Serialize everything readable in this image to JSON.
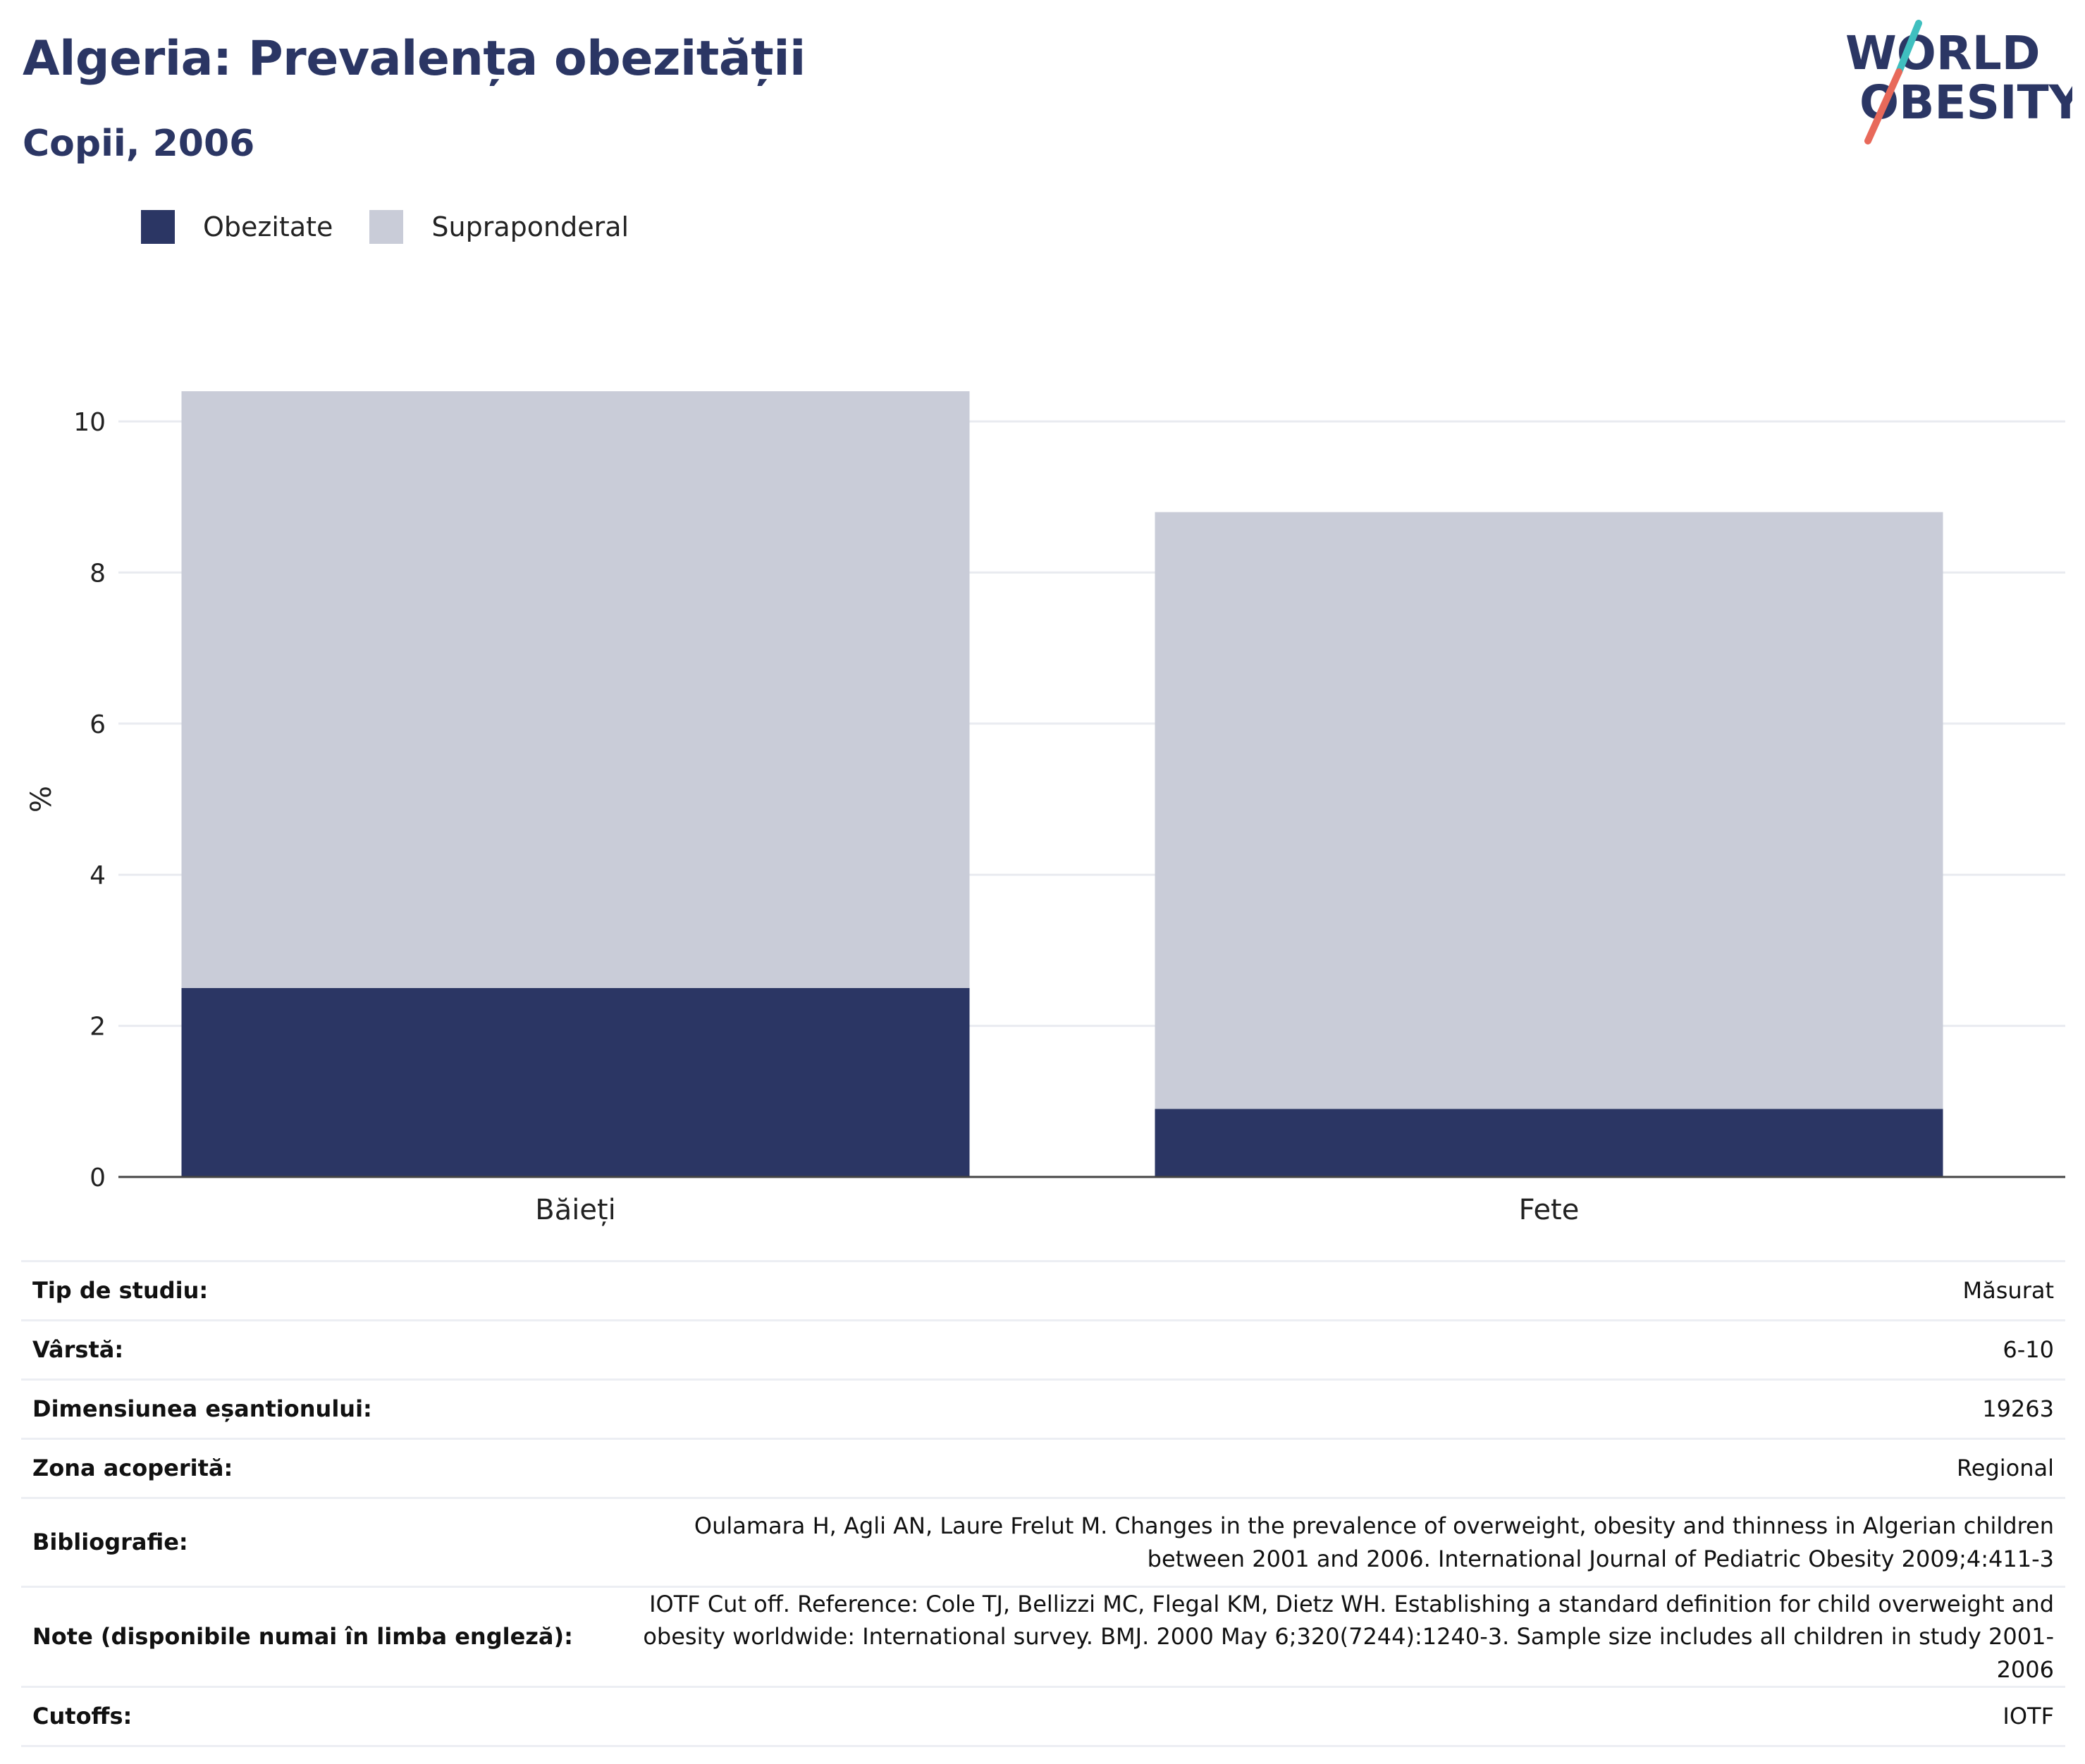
{
  "header": {
    "title": "Algeria: Prevalența obezității",
    "subtitle": "Copii, 2006"
  },
  "logo": {
    "line1": "WORLD",
    "line2": "OBESITY",
    "colors": {
      "text": "#2b3664",
      "slash_top": "#3fbfbf",
      "slash_bottom": "#e8695a"
    }
  },
  "legend": [
    {
      "label": "Obezitate",
      "color": "#2b3664"
    },
    {
      "label": "Supraponderal",
      "color": "#c9ccd8"
    }
  ],
  "chart_data": {
    "type": "bar",
    "stacked": true,
    "categories": [
      "Băieți",
      "Fete"
    ],
    "series": [
      {
        "name": "Obezitate",
        "values": [
          2.5,
          0.9
        ],
        "color": "#2b3664"
      },
      {
        "name": "Supraponderal",
        "values": [
          7.9,
          7.9
        ],
        "color": "#c9ccd8"
      }
    ],
    "ylabel": "%",
    "ylim": [
      0,
      10.6
    ],
    "yticks": [
      0,
      2,
      4,
      6,
      8,
      10
    ],
    "grid": true
  },
  "details": [
    {
      "key": "Tip de studiu:",
      "value": "Măsurat"
    },
    {
      "key": "Vârstă:",
      "value": "6-10"
    },
    {
      "key": "Dimensiunea eșantionului:",
      "value": "19263"
    },
    {
      "key": "Zona acoperită:",
      "value": "Regional"
    },
    {
      "key": "Bibliografie:",
      "value": "Oulamara H, Agli AN, Laure Frelut M. Changes in the prevalence of overweight, obesity and thinness in Algerian children between 2001 and 2006. International Journal of Pediatric Obesity 2009;4:411-3"
    },
    {
      "key": "Note (disponibile numai în limba engleză):",
      "value": "IOTF Cut off. Reference: Cole TJ, Bellizzi MC, Flegal KM, Dietz WH. Establishing a standard definition for child overweight and obesity worldwide: International survey. BMJ. 2000 May 6;320(7244):1240-3. Sample size includes all children in study 2001-2006"
    },
    {
      "key": "Cutoffs:",
      "value": "IOTF"
    }
  ]
}
